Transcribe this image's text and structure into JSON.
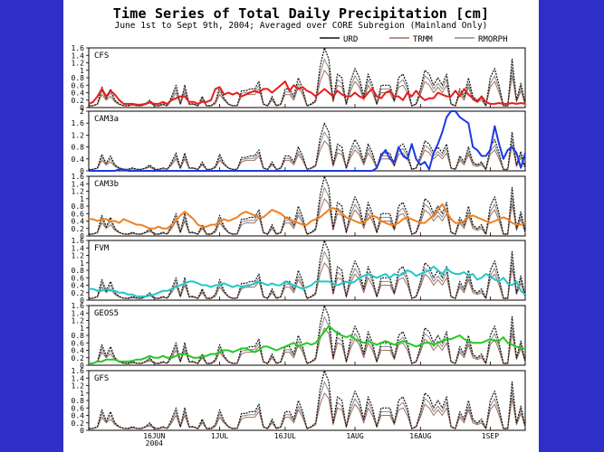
{
  "title": "Time Series of Total Daily Precipitation [cm]",
  "subtitle": "June 1st to Sept 9th, 2004; Averaged over CORE Subregion (Mainland Only)",
  "legend": [
    {
      "name": "URD",
      "color": "#111111"
    },
    {
      "name": "TRMM",
      "color": "#a07060"
    },
    {
      "name": "RMORPH",
      "color": "#8a8a8a"
    }
  ],
  "colors": {
    "background": "#2e2ec8",
    "panel": "#ffffff"
  },
  "chart_data": {
    "type": "line",
    "days": 101,
    "x_ticks": [
      {
        "label": "16JUN",
        "sub": "2004",
        "day": 15
      },
      {
        "label": "1JUL",
        "day": 30
      },
      {
        "label": "16JUL",
        "day": 45
      },
      {
        "label": "1AUG",
        "day": 61
      },
      {
        "label": "16AUG",
        "day": 76
      },
      {
        "label": "1SEP",
        "day": 92
      }
    ],
    "observations": {
      "URD": [
        0.05,
        0.05,
        0.1,
        0.55,
        0.25,
        0.5,
        0.2,
        0.1,
        0.05,
        0.05,
        0.1,
        0.05,
        0.05,
        0.1,
        0.2,
        0.05,
        0.05,
        0.1,
        0.05,
        0.3,
        0.6,
        0.1,
        0.6,
        0.1,
        0.1,
        0.05,
        0.3,
        0.05,
        0.05,
        0.15,
        0.55,
        0.25,
        0.1,
        0.05,
        0.05,
        0.45,
        0.45,
        0.5,
        0.5,
        0.7,
        0.1,
        0.05,
        0.3,
        0.05,
        0.1,
        0.5,
        0.5,
        0.3,
        0.8,
        0.5,
        0.05,
        0.1,
        0.2,
        1.1,
        1.6,
        1.3,
        0.2,
        0.9,
        0.8,
        0.1,
        0.7,
        1.05,
        0.8,
        0.3,
        0.9,
        0.6,
        0.1,
        0.6,
        0.6,
        0.6,
        0.2,
        0.8,
        0.9,
        0.6,
        0.05,
        0.1,
        0.5,
        1.0,
        0.9,
        0.6,
        0.8,
        0.6,
        0.9,
        0.1,
        0.05,
        0.5,
        0.3,
        0.8,
        0.3,
        0.2,
        0.3,
        0.05,
        0.8,
        1.05,
        0.6,
        0.05,
        0.05,
        1.3,
        0.2,
        0.65,
        0.1
      ],
      "TRMM": [
        0.03,
        0.05,
        0.08,
        0.35,
        0.2,
        0.3,
        0.15,
        0.08,
        0.05,
        0.04,
        0.06,
        0.05,
        0.04,
        0.08,
        0.12,
        0.05,
        0.04,
        0.07,
        0.05,
        0.2,
        0.4,
        0.08,
        0.4,
        0.08,
        0.08,
        0.04,
        0.2,
        0.04,
        0.04,
        0.1,
        0.35,
        0.2,
        0.08,
        0.04,
        0.05,
        0.3,
        0.35,
        0.35,
        0.35,
        0.5,
        0.08,
        0.04,
        0.2,
        0.04,
        0.08,
        0.35,
        0.35,
        0.2,
        0.55,
        0.35,
        0.04,
        0.08,
        0.15,
        0.7,
        1.0,
        0.85,
        0.15,
        0.6,
        0.55,
        0.08,
        0.45,
        0.7,
        0.55,
        0.2,
        0.6,
        0.4,
        0.08,
        0.4,
        0.4,
        0.4,
        0.15,
        0.55,
        0.6,
        0.4,
        0.04,
        0.08,
        0.35,
        0.7,
        0.6,
        0.4,
        0.55,
        0.4,
        0.6,
        0.08,
        0.04,
        0.35,
        0.2,
        0.55,
        0.2,
        0.15,
        0.2,
        0.04,
        0.55,
        0.7,
        0.4,
        0.04,
        0.04,
        0.85,
        0.15,
        0.45,
        0.08
      ],
      "RMORPH": [
        0.04,
        0.05,
        0.09,
        0.45,
        0.22,
        0.4,
        0.18,
        0.09,
        0.05,
        0.05,
        0.08,
        0.05,
        0.05,
        0.09,
        0.16,
        0.05,
        0.05,
        0.08,
        0.05,
        0.25,
        0.5,
        0.09,
        0.5,
        0.09,
        0.09,
        0.05,
        0.25,
        0.05,
        0.05,
        0.12,
        0.45,
        0.22,
        0.09,
        0.05,
        0.05,
        0.38,
        0.4,
        0.42,
        0.42,
        0.6,
        0.09,
        0.05,
        0.25,
        0.05,
        0.09,
        0.42,
        0.42,
        0.25,
        0.65,
        0.42,
        0.05,
        0.09,
        0.18,
        0.9,
        1.3,
        1.05,
        0.18,
        0.75,
        0.65,
        0.09,
        0.55,
        0.85,
        0.65,
        0.25,
        0.75,
        0.5,
        0.09,
        0.5,
        0.5,
        0.5,
        0.18,
        0.65,
        0.75,
        0.5,
        0.05,
        0.09,
        0.42,
        0.85,
        0.75,
        0.5,
        0.65,
        0.5,
        0.75,
        0.09,
        0.05,
        0.42,
        0.25,
        0.65,
        0.25,
        0.18,
        0.25,
        0.05,
        0.65,
        0.85,
        0.5,
        0.05,
        0.05,
        1.05,
        0.18,
        0.55,
        0.09
      ]
    },
    "panels": [
      {
        "label": "CFS",
        "ymax": 1.6,
        "yticks": [
          0,
          0.2,
          0.4,
          0.6,
          0.8,
          1,
          1.2,
          1.4,
          1.6
        ],
        "color": "#e81c1c",
        "model": [
          0.1,
          0.15,
          0.3,
          0.5,
          0.3,
          0.45,
          0.35,
          0.2,
          0.1,
          0.1,
          0.1,
          0.08,
          0.08,
          0.1,
          0.15,
          0.1,
          0.1,
          0.15,
          0.1,
          0.2,
          0.25,
          0.3,
          0.3,
          0.15,
          0.15,
          0.1,
          0.15,
          0.15,
          0.2,
          0.5,
          0.55,
          0.35,
          0.4,
          0.35,
          0.4,
          0.3,
          0.35,
          0.4,
          0.45,
          0.4,
          0.5,
          0.5,
          0.4,
          0.5,
          0.6,
          0.7,
          0.45,
          0.6,
          0.5,
          0.55,
          0.45,
          0.4,
          0.3,
          0.4,
          0.5,
          0.4,
          0.3,
          0.45,
          0.35,
          0.3,
          0.3,
          0.4,
          0.3,
          0.25,
          0.4,
          0.5,
          0.3,
          0.25,
          0.4,
          0.45,
          0.3,
          0.3,
          0.2,
          0.4,
          0.3,
          0.45,
          0.3,
          0.2,
          0.25,
          0.25,
          0.4,
          0.35,
          0.3,
          0.3,
          0.45,
          0.3,
          0.5,
          0.35,
          0.25,
          0.15,
          0.3,
          0.15,
          0.1,
          0.1,
          0.12,
          0.1,
          0.1,
          0.12,
          0.1,
          0.12,
          0.1
        ]
      },
      {
        "label": "CAM3a",
        "ymax": 2.0,
        "yticks": [
          0,
          0.4,
          0.8,
          1.2,
          1.6,
          2
        ],
        "color": "#1c3ae6",
        "model": [
          0,
          0,
          0,
          0,
          0,
          0,
          0,
          0.05,
          0.05,
          0,
          0,
          0,
          0,
          0,
          0,
          0,
          0,
          0,
          0,
          0,
          0,
          0,
          0,
          0,
          0,
          0,
          0,
          0,
          0,
          0,
          0,
          0,
          0,
          0,
          0,
          0,
          0,
          0,
          0,
          0,
          0,
          0,
          0,
          0,
          0,
          0,
          0,
          0,
          0,
          0,
          0,
          0,
          0,
          0,
          0,
          0,
          0,
          0,
          0,
          0,
          0,
          0,
          0,
          0,
          0,
          0,
          0.1,
          0.5,
          0.7,
          0.4,
          0.3,
          0.8,
          0.5,
          0.4,
          0.9,
          0.4,
          0.2,
          0.3,
          0.05,
          0.6,
          0.9,
          1.3,
          1.8,
          2.0,
          2.0,
          1.8,
          1.7,
          1.6,
          0.8,
          0.7,
          0.5,
          0.5,
          0.7,
          1.5,
          0.9,
          0.4,
          0.7,
          0.8,
          0.6,
          0.1,
          0.6
        ]
      },
      {
        "label": "CAM3b",
        "ymax": 1.6,
        "yticks": [
          0,
          0.2,
          0.4,
          0.6,
          0.8,
          1,
          1.2,
          1.4,
          1.6
        ],
        "color": "#f08020",
        "model": [
          0.45,
          0.45,
          0.4,
          0.45,
          0.45,
          0.4,
          0.4,
          0.35,
          0.45,
          0.4,
          0.35,
          0.3,
          0.3,
          0.25,
          0.2,
          0.2,
          0.25,
          0.2,
          0.2,
          0.3,
          0.4,
          0.55,
          0.65,
          0.55,
          0.45,
          0.3,
          0.25,
          0.25,
          0.3,
          0.3,
          0.4,
          0.45,
          0.4,
          0.45,
          0.5,
          0.6,
          0.65,
          0.6,
          0.55,
          0.5,
          0.5,
          0.6,
          0.7,
          0.65,
          0.6,
          0.5,
          0.45,
          0.4,
          0.35,
          0.3,
          0.3,
          0.4,
          0.45,
          0.5,
          0.6,
          0.7,
          0.75,
          0.7,
          0.6,
          0.5,
          0.45,
          0.4,
          0.35,
          0.35,
          0.45,
          0.55,
          0.5,
          0.4,
          0.35,
          0.3,
          0.3,
          0.35,
          0.45,
          0.5,
          0.45,
          0.4,
          0.35,
          0.35,
          0.45,
          0.55,
          0.7,
          0.85,
          0.65,
          0.45,
          0.35,
          0.35,
          0.4,
          0.5,
          0.55,
          0.5,
          0.45,
          0.4,
          0.35,
          0.4,
          0.45,
          0.5,
          0.45,
          0.35,
          0.3,
          0.3,
          0.35
        ]
      },
      {
        "label": "FVM",
        "ymax": 1.6,
        "yticks": [
          0,
          0.2,
          0.4,
          0.6,
          0.8,
          1,
          1.2,
          1.4,
          1.6
        ],
        "color": "#20c8c8",
        "model": [
          0.3,
          0.3,
          0.25,
          0.25,
          0.3,
          0.25,
          0.25,
          0.2,
          0.2,
          0.15,
          0.15,
          0.1,
          0.1,
          0.1,
          0.12,
          0.15,
          0.2,
          0.25,
          0.25,
          0.3,
          0.35,
          0.4,
          0.45,
          0.5,
          0.5,
          0.45,
          0.4,
          0.4,
          0.35,
          0.4,
          0.4,
          0.45,
          0.4,
          0.35,
          0.4,
          0.35,
          0.35,
          0.4,
          0.45,
          0.5,
          0.45,
          0.4,
          0.45,
          0.4,
          0.4,
          0.5,
          0.45,
          0.4,
          0.35,
          0.3,
          0.35,
          0.4,
          0.5,
          0.5,
          0.5,
          0.5,
          0.45,
          0.4,
          0.45,
          0.5,
          0.45,
          0.5,
          0.6,
          0.65,
          0.7,
          0.65,
          0.6,
          0.65,
          0.7,
          0.6,
          0.7,
          0.65,
          0.7,
          0.8,
          0.75,
          0.65,
          0.7,
          0.75,
          0.8,
          0.9,
          0.8,
          0.7,
          0.85,
          0.75,
          0.7,
          0.7,
          0.75,
          0.65,
          0.7,
          0.55,
          0.6,
          0.7,
          0.65,
          0.55,
          0.5,
          0.6,
          0.45,
          0.4,
          0.5,
          0.25,
          0.15
        ]
      },
      {
        "label": "GEOS5",
        "ymax": 1.6,
        "yticks": [
          0,
          0.2,
          0.4,
          0.6,
          0.8,
          1,
          1.2,
          1.4,
          1.6
        ],
        "color": "#22cc22",
        "model": [
          0.05,
          0.05,
          0.1,
          0.1,
          0.15,
          0.15,
          0.15,
          0.1,
          0.1,
          0.1,
          0.12,
          0.15,
          0.15,
          0.2,
          0.25,
          0.2,
          0.2,
          0.25,
          0.2,
          0.2,
          0.25,
          0.3,
          0.3,
          0.25,
          0.2,
          0.2,
          0.25,
          0.25,
          0.3,
          0.3,
          0.35,
          0.4,
          0.4,
          0.35,
          0.4,
          0.45,
          0.45,
          0.4,
          0.35,
          0.4,
          0.5,
          0.5,
          0.45,
          0.4,
          0.45,
          0.5,
          0.55,
          0.6,
          0.5,
          0.55,
          0.6,
          0.55,
          0.6,
          0.75,
          0.9,
          1.05,
          0.95,
          0.85,
          0.8,
          0.75,
          0.8,
          0.7,
          0.65,
          0.6,
          0.65,
          0.6,
          0.55,
          0.6,
          0.65,
          0.6,
          0.55,
          0.6,
          0.65,
          0.6,
          0.55,
          0.5,
          0.55,
          0.6,
          0.6,
          0.55,
          0.6,
          0.65,
          0.7,
          0.7,
          0.75,
          0.8,
          0.7,
          0.65,
          0.6,
          0.6,
          0.6,
          0.65,
          0.7,
          0.65,
          0.65,
          0.75,
          0.6,
          0.55,
          0.5,
          0.45,
          0.45
        ]
      },
      {
        "label": "GFS",
        "ymax": 1.6,
        "yticks": [
          0,
          0.2,
          0.4,
          0.6,
          0.8,
          1,
          1.2,
          1.4,
          1.6
        ],
        "color": null,
        "model": []
      }
    ]
  }
}
